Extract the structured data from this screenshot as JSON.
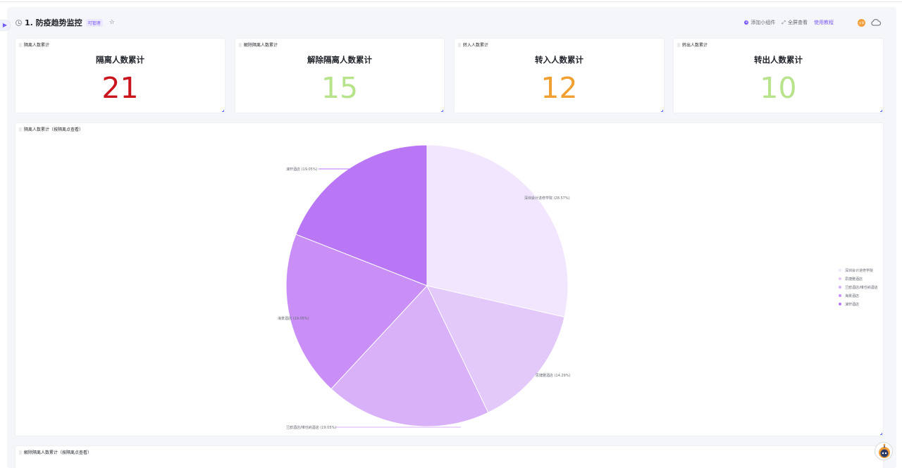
{
  "header": {
    "title": "1. 防疫趋势监控",
    "badge": "可管理",
    "actions": {
      "add_widget": "添加小组件",
      "fullscreen": "全屏查看",
      "tutorial": "使用教程"
    },
    "avatar_text": "分享"
  },
  "kpis": [
    {
      "label": "隔离人数累计",
      "title": "隔离人数累计",
      "value": "21",
      "color": "#c9151e"
    },
    {
      "label": "解除隔离人数累计",
      "title": "解除隔离人数累计",
      "value": "15",
      "color": "#b7e38b"
    },
    {
      "label": "转入人数累计",
      "title": "转入人数累计",
      "value": "12",
      "color": "#f0a030"
    },
    {
      "label": "转出人数累计",
      "title": "转出人数累计",
      "value": "10",
      "color": "#b7e38b"
    }
  ],
  "pie_card": {
    "label": "隔离人数累计（按隔离点查看）"
  },
  "bottom_card": {
    "label": "解除隔离人数累计（按隔离点查看）"
  },
  "chart_data": {
    "type": "pie",
    "title": "隔离人数累计（按隔离点查看）",
    "categories": [
      "深圳会计进修学院",
      "思捷雅酒店",
      "兰欧酒店/维也纳酒店",
      "海景酒店",
      "濠轩酒店"
    ],
    "values": [
      28.57,
      14.29,
      19.05,
      19.05,
      19.05
    ],
    "slice_labels": [
      "深圳会计进修学院 (28.57%)",
      "思捷雅酒店 (14.29%)",
      "兰欧酒店/维也纳酒店 (19.05%)",
      "海景酒店 (19.05%)",
      "濠轩酒店 (19.05%)"
    ],
    "colors": [
      "#f1e6fd",
      "#e3c8fa",
      "#d8b1f9",
      "#c98ff7",
      "#b977f5"
    ],
    "legend_position": "right"
  }
}
